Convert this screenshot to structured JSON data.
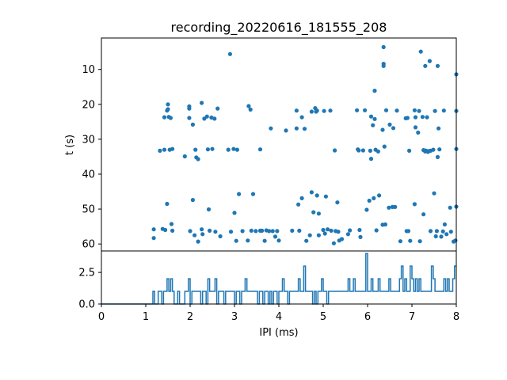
{
  "chart_data": [
    {
      "type": "scatter",
      "title": "recording_20220616_181555_208",
      "xlabel": "",
      "ylabel": "t (s)",
      "xlim": [
        0,
        8
      ],
      "ylim": [
        62,
        1
      ],
      "y_inverted": true,
      "yticks": [
        10,
        20,
        30,
        40,
        50,
        60
      ],
      "color": "#1f77b4",
      "grid": false,
      "points": [
        [
          1.18,
          55.8
        ],
        [
          1.18,
          58.3
        ],
        [
          1.32,
          33.3
        ],
        [
          1.38,
          55.7
        ],
        [
          1.42,
          23.7
        ],
        [
          1.42,
          33.0
        ],
        [
          1.44,
          56.0
        ],
        [
          1.48,
          21.8
        ],
        [
          1.48,
          48.5
        ],
        [
          1.5,
          20.0
        ],
        [
          1.5,
          21.4
        ],
        [
          1.52,
          23.6
        ],
        [
          1.54,
          33.0
        ],
        [
          1.56,
          23.9
        ],
        [
          1.58,
          54.3
        ],
        [
          1.6,
          32.8
        ],
        [
          1.6,
          56.2
        ],
        [
          1.88,
          34.9
        ],
        [
          1.98,
          20.6
        ],
        [
          1.98,
          21.2
        ],
        [
          1.98,
          23.9
        ],
        [
          2.0,
          56.3
        ],
        [
          2.06,
          25.8
        ],
        [
          2.06,
          47.4
        ],
        [
          2.1,
          57.5
        ],
        [
          2.12,
          33.0
        ],
        [
          2.14,
          35.2
        ],
        [
          2.18,
          35.7
        ],
        [
          2.18,
          59.3
        ],
        [
          2.26,
          19.6
        ],
        [
          2.26,
          55.8
        ],
        [
          2.28,
          57.2
        ],
        [
          2.32,
          24.1
        ],
        [
          2.38,
          23.5
        ],
        [
          2.4,
          32.9
        ],
        [
          2.42,
          50.1
        ],
        [
          2.44,
          56.2
        ],
        [
          2.48,
          23.8
        ],
        [
          2.5,
          32.8
        ],
        [
          2.55,
          24.1
        ],
        [
          2.57,
          56.5
        ],
        [
          2.62,
          21.2
        ],
        [
          2.68,
          57.8
        ],
        [
          2.86,
          33.0
        ],
        [
          2.9,
          5.6
        ],
        [
          2.92,
          56.5
        ],
        [
          2.98,
          32.8
        ],
        [
          3.0,
          51.1
        ],
        [
          3.04,
          59.1
        ],
        [
          3.06,
          33.0
        ],
        [
          3.1,
          45.7
        ],
        [
          3.18,
          56.3
        ],
        [
          3.3,
          59.0
        ],
        [
          3.32,
          20.5
        ],
        [
          3.36,
          21.5
        ],
        [
          3.38,
          56.2
        ],
        [
          3.42,
          45.7
        ],
        [
          3.48,
          56.3
        ],
        [
          3.58,
          32.9
        ],
        [
          3.58,
          56.2
        ],
        [
          3.62,
          56.2
        ],
        [
          3.68,
          59.1
        ],
        [
          3.72,
          56.1
        ],
        [
          3.78,
          56.3
        ],
        [
          3.82,
          26.9
        ],
        [
          3.86,
          56.3
        ],
        [
          3.92,
          57.9
        ],
        [
          3.96,
          56.3
        ],
        [
          4.0,
          59.0
        ],
        [
          4.16,
          27.5
        ],
        [
          4.3,
          56.2
        ],
        [
          4.4,
          21.8
        ],
        [
          4.4,
          26.9
        ],
        [
          4.44,
          48.7
        ],
        [
          4.46,
          56.2
        ],
        [
          4.52,
          23.7
        ],
        [
          4.52,
          46.9
        ],
        [
          4.58,
          27.0
        ],
        [
          4.62,
          59.1
        ],
        [
          4.7,
          57.5
        ],
        [
          4.74,
          22.1
        ],
        [
          4.74,
          45.2
        ],
        [
          4.78,
          50.9
        ],
        [
          4.82,
          21.1
        ],
        [
          4.84,
          22.1
        ],
        [
          4.86,
          21.8
        ],
        [
          4.86,
          46.1
        ],
        [
          4.9,
          51.3
        ],
        [
          4.9,
          57.5
        ],
        [
          5.0,
          56.0
        ],
        [
          5.02,
          21.9
        ],
        [
          5.04,
          57.0
        ],
        [
          5.06,
          46.4
        ],
        [
          5.1,
          55.8
        ],
        [
          5.16,
          21.8
        ],
        [
          5.18,
          56.2
        ],
        [
          5.24,
          59.8
        ],
        [
          5.26,
          33.2
        ],
        [
          5.28,
          56.3
        ],
        [
          5.32,
          48.1
        ],
        [
          5.34,
          56.5
        ],
        [
          5.36,
          59.0
        ],
        [
          5.42,
          58.6
        ],
        [
          5.56,
          57.2
        ],
        [
          5.6,
          56.1
        ],
        [
          5.76,
          21.7
        ],
        [
          5.78,
          32.9
        ],
        [
          5.8,
          33.2
        ],
        [
          5.82,
          56.0
        ],
        [
          5.84,
          58.0
        ],
        [
          5.9,
          33.2
        ],
        [
          5.94,
          21.7
        ],
        [
          5.98,
          50.2
        ],
        [
          6.04,
          47.6
        ],
        [
          6.06,
          33.3
        ],
        [
          6.08,
          23.5
        ],
        [
          6.08,
          35.6
        ],
        [
          6.12,
          26.0
        ],
        [
          6.14,
          46.9
        ],
        [
          6.16,
          16.1
        ],
        [
          6.16,
          24.2
        ],
        [
          6.18,
          33.0
        ],
        [
          6.2,
          56.1
        ],
        [
          6.24,
          33.5
        ],
        [
          6.26,
          46.1
        ],
        [
          6.34,
          27.3
        ],
        [
          6.34,
          54.5
        ],
        [
          6.36,
          3.6
        ],
        [
          6.36,
          8.4
        ],
        [
          6.36,
          9.0
        ],
        [
          6.38,
          32.1
        ],
        [
          6.4,
          54.4
        ],
        [
          6.42,
          21.7
        ],
        [
          6.48,
          49.6
        ],
        [
          6.5,
          25.8
        ],
        [
          6.56,
          49.4
        ],
        [
          6.58,
          26.8
        ],
        [
          6.62,
          49.4
        ],
        [
          6.66,
          21.8
        ],
        [
          6.74,
          59.2
        ],
        [
          6.86,
          24.0
        ],
        [
          6.88,
          56.3
        ],
        [
          6.9,
          23.9
        ],
        [
          6.92,
          56.3
        ],
        [
          6.94,
          33.3
        ],
        [
          6.96,
          59.1
        ],
        [
          7.06,
          21.7
        ],
        [
          7.06,
          48.6
        ],
        [
          7.08,
          23.7
        ],
        [
          7.08,
          26.6
        ],
        [
          7.14,
          28.1
        ],
        [
          7.16,
          21.9
        ],
        [
          7.18,
          59.2
        ],
        [
          7.2,
          4.9
        ],
        [
          7.24,
          23.6
        ],
        [
          7.26,
          33.1
        ],
        [
          7.26,
          51.5
        ],
        [
          7.28,
          33.2
        ],
        [
          7.3,
          33.5
        ],
        [
          7.3,
          9.0
        ],
        [
          7.32,
          33.3
        ],
        [
          7.34,
          23.7
        ],
        [
          7.36,
          33.6
        ],
        [
          7.38,
          33.4
        ],
        [
          7.4,
          7.6
        ],
        [
          7.42,
          33.3
        ],
        [
          7.42,
          56.3
        ],
        [
          7.48,
          33.0
        ],
        [
          7.5,
          45.5
        ],
        [
          7.52,
          21.9
        ],
        [
          7.54,
          57.8
        ],
        [
          7.56,
          56.3
        ],
        [
          7.58,
          9.0
        ],
        [
          7.58,
          35.1
        ],
        [
          7.6,
          26.9
        ],
        [
          7.62,
          32.9
        ],
        [
          7.66,
          57.9
        ],
        [
          7.7,
          56.4
        ],
        [
          7.72,
          21.8
        ],
        [
          7.74,
          54.4
        ],
        [
          7.78,
          57.2
        ],
        [
          7.86,
          49.6
        ],
        [
          7.88,
          56.5
        ],
        [
          7.94,
          59.3
        ],
        [
          7.98,
          59.0
        ],
        [
          8.0,
          11.4
        ],
        [
          8.0,
          21.9
        ],
        [
          8.0,
          32.8
        ],
        [
          8.0,
          49.3
        ]
      ]
    },
    {
      "type": "line",
      "title": "",
      "xlabel": "IPI (ms)",
      "ylabel": "",
      "xlim": [
        0,
        8
      ],
      "ylim": [
        0,
        4.2
      ],
      "xticks": [
        0,
        1,
        2,
        3,
        4,
        5,
        6,
        7,
        8
      ],
      "yticks": [
        0.0,
        2.5
      ],
      "ytick_labels": [
        "0.0",
        "2.5"
      ],
      "color": "#1f77b4",
      "grid": false,
      "bin_width_ms": 0.04,
      "bins_start": 0,
      "counts": [
        0,
        0,
        0,
        0,
        0,
        0,
        0,
        0,
        0,
        0,
        0,
        0,
        0,
        0,
        0,
        0,
        0,
        0,
        0,
        0,
        0,
        0,
        0,
        0,
        0,
        0,
        0,
        0,
        0,
        1,
        0,
        0,
        1,
        1,
        0,
        1,
        1,
        2,
        1,
        2,
        1,
        0,
        0,
        1,
        0,
        0,
        0,
        1,
        1,
        2,
        0,
        1,
        1,
        1,
        1,
        1,
        0,
        1,
        1,
        0,
        2,
        1,
        1,
        1,
        2,
        0,
        1,
        1,
        1,
        0,
        1,
        1,
        1,
        1,
        1,
        0,
        1,
        1,
        0,
        1,
        1,
        2,
        1,
        1,
        1,
        1,
        1,
        1,
        0,
        1,
        1,
        0,
        1,
        1,
        0,
        1,
        0,
        1,
        1,
        0,
        1,
        1,
        2,
        1,
        1,
        0,
        1,
        1,
        1,
        1,
        1,
        2,
        1,
        1,
        3,
        1,
        1,
        1,
        1,
        0,
        1,
        0,
        1,
        1,
        2,
        1,
        1,
        0,
        1,
        1,
        1,
        1,
        1,
        1,
        1,
        1,
        1,
        1,
        1,
        2,
        1,
        1,
        2,
        1,
        1,
        1,
        1,
        1,
        1,
        4,
        1,
        1,
        2,
        1,
        1,
        1,
        2,
        1,
        1,
        1,
        1,
        1,
        2,
        1,
        1,
        1,
        1,
        1,
        2,
        3,
        1,
        2,
        1,
        1,
        3,
        2,
        1,
        2,
        1,
        2,
        1,
        1,
        1,
        1,
        1,
        1,
        3,
        2,
        1,
        1,
        1,
        1,
        1,
        2,
        1,
        2,
        1,
        1,
        2,
        3
      ]
    }
  ]
}
